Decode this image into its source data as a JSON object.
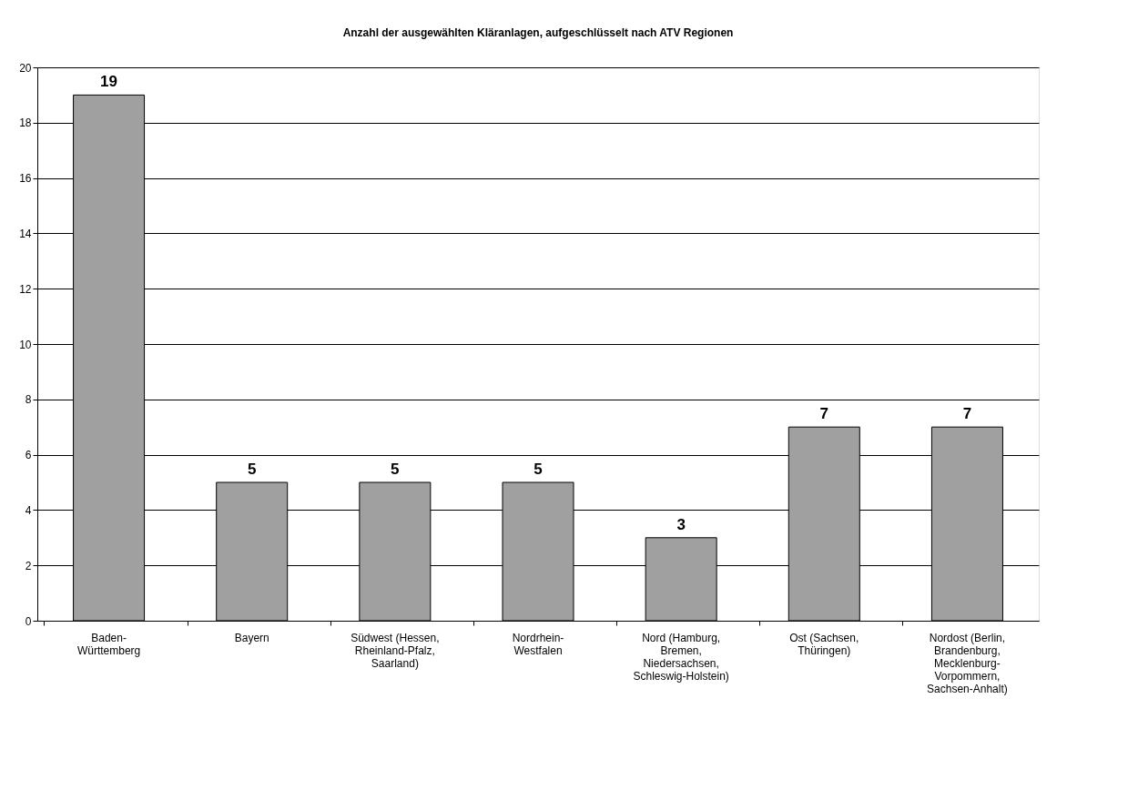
{
  "chart_data": {
    "type": "bar",
    "title": "Anzahl der ausgewählten Kläranlagen, aufgeschlüsselt nach ATV Regionen",
    "categories": [
      "Baden-\nWürttemberg",
      "Bayern",
      "Südwest (Hessen,\nRheinland-Pfalz,\nSaarland)",
      "Nordrhein-\nWestfalen",
      "Nord (Hamburg,\nBremen,\nNiedersachsen,\nSchleswig-Holstein)",
      "Ost (Sachsen,\nThüringen)",
      "Nordost (Berlin,\nBrandenburg,\nMecklenburg-\nVorpommern,\nSachsen-Anhalt)"
    ],
    "values": [
      19,
      5,
      5,
      5,
      3,
      7,
      7
    ],
    "color": "#a0a0a0",
    "ylim": [
      0,
      20
    ],
    "yticks": [
      0,
      2,
      4,
      6,
      8,
      10,
      12,
      14,
      16,
      18,
      20
    ],
    "grid": "y",
    "data_labels": true
  }
}
